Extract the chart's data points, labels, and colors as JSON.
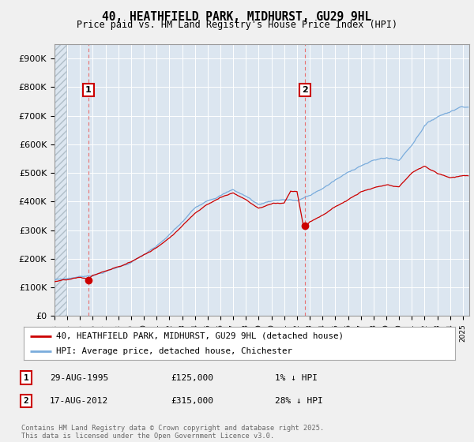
{
  "title": "40, HEATHFIELD PARK, MIDHURST, GU29 9HL",
  "subtitle": "Price paid vs. HM Land Registry's House Price Index (HPI)",
  "ylim": [
    0,
    950000
  ],
  "yticks": [
    0,
    100000,
    200000,
    300000,
    400000,
    500000,
    600000,
    700000,
    800000,
    900000
  ],
  "ytick_labels": [
    "£0",
    "£100K",
    "£200K",
    "£300K",
    "£400K",
    "£500K",
    "£600K",
    "£700K",
    "£800K",
    "£900K"
  ],
  "background_color": "#f0f0f0",
  "plot_bg_color": "#dce6f0",
  "grid_color": "#ffffff",
  "hpi_color": "#7aacdc",
  "price_color": "#cc0000",
  "hatch_color": "#c8d4e0",
  "transaction1_x": 1995.66,
  "transaction1_price": 125000,
  "transaction1_label": "1",
  "transaction2_x": 2012.63,
  "transaction2_price": 315000,
  "transaction2_label": "2",
  "legend_line1": "40, HEATHFIELD PARK, MIDHURST, GU29 9HL (detached house)",
  "legend_line2": "HPI: Average price, detached house, Chichester",
  "table_row1": [
    "1",
    "29-AUG-1995",
    "£125,000",
    "1% ↓ HPI"
  ],
  "table_row2": [
    "2",
    "17-AUG-2012",
    "£315,000",
    "28% ↓ HPI"
  ],
  "footer": "Contains HM Land Registry data © Crown copyright and database right 2025.\nThis data is licensed under the Open Government Licence v3.0.",
  "xlim_left": 1993.0,
  "xlim_right": 2025.5,
  "hatch_end": 1993.9
}
